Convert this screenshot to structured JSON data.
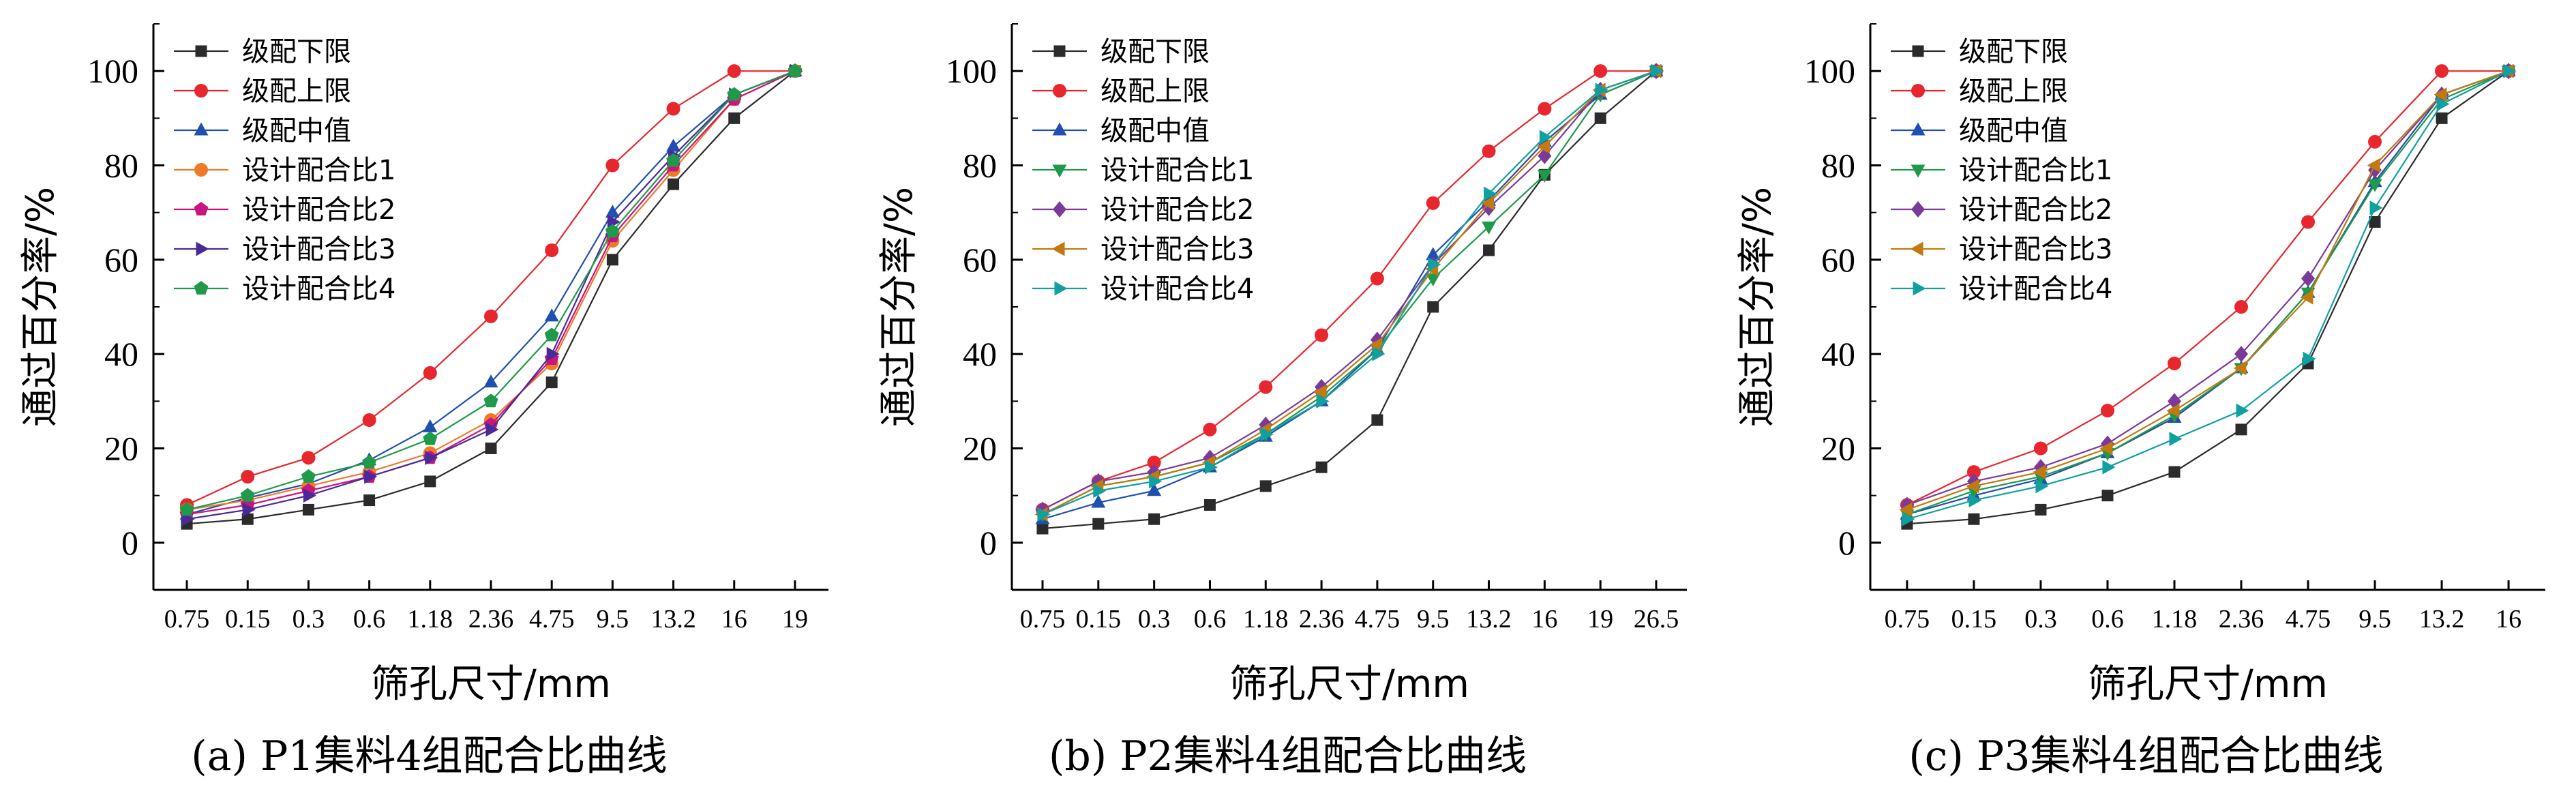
{
  "chart_data": [
    {
      "type": "line",
      "caption": "(a) P1集料4组配合比曲线",
      "xlabel": "筛孔尺寸/mm",
      "ylabel": "通过百分率/%",
      "ylim": [
        -10,
        110
      ],
      "yticks": [
        0,
        20,
        40,
        60,
        80,
        100
      ],
      "categories": [
        "0.75",
        "0.15",
        "0.3",
        "0.6",
        "1.18",
        "2.36",
        "4.75",
        "9.5",
        "13.2",
        "16",
        "19"
      ],
      "legend_position": "top-left",
      "series": [
        {
          "name": "级配下限",
          "color": "#2b2b2b",
          "marker": "square",
          "values": [
            4,
            5,
            7,
            9,
            13,
            20,
            34,
            60,
            76,
            90,
            100
          ]
        },
        {
          "name": "级配上限",
          "color": "#e8262d",
          "marker": "circle",
          "values": [
            8,
            14,
            18,
            26,
            36,
            48,
            62,
            80,
            92,
            100,
            100
          ]
        },
        {
          "name": "级配中值",
          "color": "#1f4fb0",
          "marker": "triangle-up",
          "values": [
            6,
            9.5,
            12.5,
            17.5,
            24.5,
            34,
            48,
            70,
            84,
            95,
            100
          ]
        },
        {
          "name": "设计配合比1",
          "color": "#ee7a28",
          "marker": "circle",
          "values": [
            7,
            9,
            12,
            15,
            19,
            26,
            38,
            64,
            79,
            94,
            100
          ]
        },
        {
          "name": "设计配合比2",
          "color": "#c8157f",
          "marker": "pentagon",
          "values": [
            6,
            8,
            11,
            14,
            18,
            25,
            39,
            65,
            80,
            94,
            100
          ]
        },
        {
          "name": "设计配合比3",
          "color": "#4a2a9a",
          "marker": "triangle-right",
          "values": [
            5,
            7,
            10,
            14,
            18,
            24,
            40,
            68,
            82,
            95,
            100
          ]
        },
        {
          "name": "设计配合比4",
          "color": "#1e9a4a",
          "marker": "pentagon",
          "values": [
            7,
            10,
            14,
            17,
            22,
            30,
            44,
            66,
            81,
            95,
            100
          ]
        }
      ]
    },
    {
      "type": "line",
      "caption": "(b) P2集料4组配合比曲线",
      "xlabel": "筛孔尺寸/mm",
      "ylabel": "通过百分率/%",
      "ylim": [
        -10,
        110
      ],
      "yticks": [
        0,
        20,
        40,
        60,
        80,
        100
      ],
      "categories": [
        "0.75",
        "0.15",
        "0.3",
        "0.6",
        "1.18",
        "2.36",
        "4.75",
        "9.5",
        "13.2",
        "16",
        "19",
        "26.5"
      ],
      "legend_position": "top-left",
      "series": [
        {
          "name": "级配下限",
          "color": "#2b2b2b",
          "marker": "square",
          "values": [
            3,
            4,
            5,
            8,
            12,
            16,
            26,
            50,
            62,
            78,
            90,
            100
          ]
        },
        {
          "name": "级配上限",
          "color": "#e8262d",
          "marker": "circle",
          "values": [
            7,
            13,
            17,
            24,
            33,
            44,
            56,
            72,
            83,
            92,
            100,
            100
          ]
        },
        {
          "name": "级配中值",
          "color": "#1f4fb0",
          "marker": "triangle-up",
          "values": [
            5,
            8.5,
            11,
            16,
            22.5,
            30,
            41,
            61,
            72.5,
            85,
            95,
            100
          ]
        },
        {
          "name": "设计配合比1",
          "color": "#1e9a4a",
          "marker": "triangle-down",
          "values": [
            6,
            12,
            14,
            17,
            23,
            31,
            41,
            56,
            67,
            78,
            95,
            100
          ]
        },
        {
          "name": "设计配合比2",
          "color": "#7b3a9a",
          "marker": "diamond",
          "values": [
            7,
            13,
            15,
            18,
            25,
            33,
            43,
            59,
            71,
            82,
            96,
            100
          ]
        },
        {
          "name": "设计配合比3",
          "color": "#c27a10",
          "marker": "triangle-left",
          "values": [
            6,
            12,
            14,
            17,
            24,
            32,
            42,
            58,
            72,
            84,
            96,
            100
          ]
        },
        {
          "name": "设计配合比4",
          "color": "#11a0a0",
          "marker": "triangle-right",
          "values": [
            6,
            11,
            13,
            16,
            23,
            30,
            40,
            59,
            74,
            86,
            96,
            100
          ]
        }
      ]
    },
    {
      "type": "line",
      "caption": "(c) P3集料4组配合比曲线",
      "xlabel": "筛孔尺寸/mm",
      "ylabel": "通过百分率/%",
      "ylim": [
        -10,
        110
      ],
      "yticks": [
        0,
        20,
        40,
        60,
        80,
        100
      ],
      "categories": [
        "0.75",
        "0.15",
        "0.3",
        "0.6",
        "1.18",
        "2.36",
        "4.75",
        "9.5",
        "13.2",
        "16"
      ],
      "legend_position": "top-left",
      "series": [
        {
          "name": "级配下限",
          "color": "#2b2b2b",
          "marker": "square",
          "values": [
            4,
            5,
            7,
            10,
            15,
            24,
            38,
            68,
            90,
            100
          ]
        },
        {
          "name": "级配上限",
          "color": "#e8262d",
          "marker": "circle",
          "values": [
            8,
            15,
            20,
            28,
            38,
            50,
            68,
            85,
            100,
            100
          ]
        },
        {
          "name": "级配中值",
          "color": "#1f4fb0",
          "marker": "triangle-up",
          "values": [
            6,
            10,
            13.5,
            19,
            26.5,
            37,
            53,
            76.5,
            95,
            100
          ]
        },
        {
          "name": "设计配合比1",
          "color": "#1e9a4a",
          "marker": "triangle-down",
          "values": [
            6,
            11,
            14,
            19,
            27,
            37,
            53,
            76,
            94,
            100
          ]
        },
        {
          "name": "设计配合比2",
          "color": "#7b3a9a",
          "marker": "diamond",
          "values": [
            8,
            13,
            16,
            21,
            30,
            40,
            56,
            79,
            95,
            100
          ]
        },
        {
          "name": "设计配合比3",
          "color": "#c27a10",
          "marker": "triangle-left",
          "values": [
            7,
            12,
            15,
            20,
            28,
            37,
            52,
            80,
            95,
            100
          ]
        },
        {
          "name": "设计配合比4",
          "color": "#11a0a0",
          "marker": "triangle-right",
          "values": [
            5,
            9,
            12,
            16,
            22,
            28,
            39,
            71,
            93,
            100
          ]
        }
      ]
    }
  ]
}
